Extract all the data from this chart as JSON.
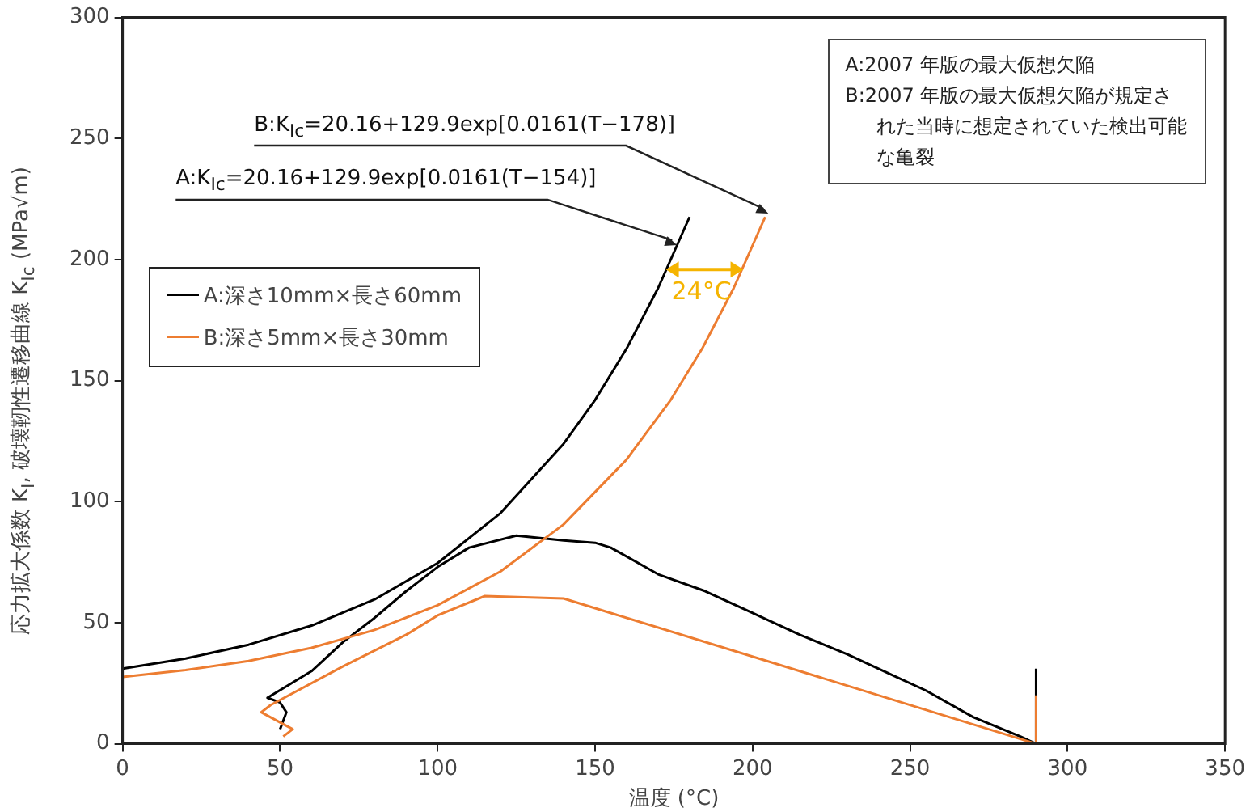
{
  "chart_data": {
    "type": "line",
    "xlabel": "温度 (°C)",
    "ylabel": "応力拡大係数 K$_{I}$, 破壊靭性遷移曲線 K$_{Ic}$ (MPa√m)",
    "xlim": [
      0,
      350
    ],
    "xticks": [
      0,
      50,
      100,
      150,
      200,
      250,
      300,
      350
    ],
    "ylim": [
      0,
      300
    ],
    "yticks": [
      0,
      50,
      100,
      150,
      200,
      250,
      300
    ],
    "grid": false,
    "legend": "top left",
    "marker": "none",
    "line_style": "solid",
    "series": [
      {
        "name": "A:深さ10mm×長さ60mm",
        "color": "#000000",
        "x": [
          50,
          52,
          50,
          46,
          60,
          70,
          80,
          90,
          100,
          110,
          125,
          140,
          150,
          155,
          170,
          185,
          200,
          215,
          230,
          245,
          255,
          270,
          285,
          290,
          290
        ],
        "values": [
          6,
          13,
          17,
          19,
          30,
          42,
          52,
          63,
          73,
          81,
          86,
          84,
          83,
          81,
          70,
          63,
          54,
          45,
          37,
          28,
          22,
          11,
          3,
          0,
          31
        ]
      },
      {
        "name": "B:深さ5mm×長さ30mm",
        "color": "#ed7d31",
        "x": [
          51,
          54,
          44,
          47,
          70,
          90,
          100,
          115,
          140,
          290,
          290
        ],
        "values": [
          3,
          6,
          13,
          16,
          32,
          45,
          53,
          61,
          60,
          0,
          20
        ]
      },
      {
        "color": "#000000",
        "x": [
          0,
          20,
          40,
          60,
          80,
          100,
          120,
          140,
          150,
          160,
          170,
          180
        ],
        "values": [
          31.0,
          35.2,
          40.9,
          48.8,
          59.6,
          74.6,
          95.3,
          123.9,
          142.0,
          163.2,
          188.2,
          217.6
        ]
      },
      {
        "color": "#ed7d31",
        "x": [
          0,
          20,
          40,
          60,
          80,
          100,
          120,
          140,
          160,
          174,
          184,
          194,
          204
        ],
        "values": [
          27.6,
          30.4,
          34.2,
          39.6,
          47.0,
          57.2,
          71.2,
          90.6,
          117.4,
          142.0,
          163.2,
          188.2,
          217.6
        ]
      }
    ],
    "annotations": [
      {
        "text": "A:K$_{Ic}$=20.16+129.9exp[0.0161(T−154)]",
        "x": 176,
        "y": 206
      },
      {
        "text": "B:K$_{Ic}$=20.16+129.9exp[0.0161(T−178)]",
        "x": 205,
        "y": 219
      },
      "24°C",
      "A:2007 年版の最大仮想欠陥",
      "B:2007 年版の最大仮想欠陥が規定された当時に想定されていた検出可能な亀裂"
    ]
  }
}
